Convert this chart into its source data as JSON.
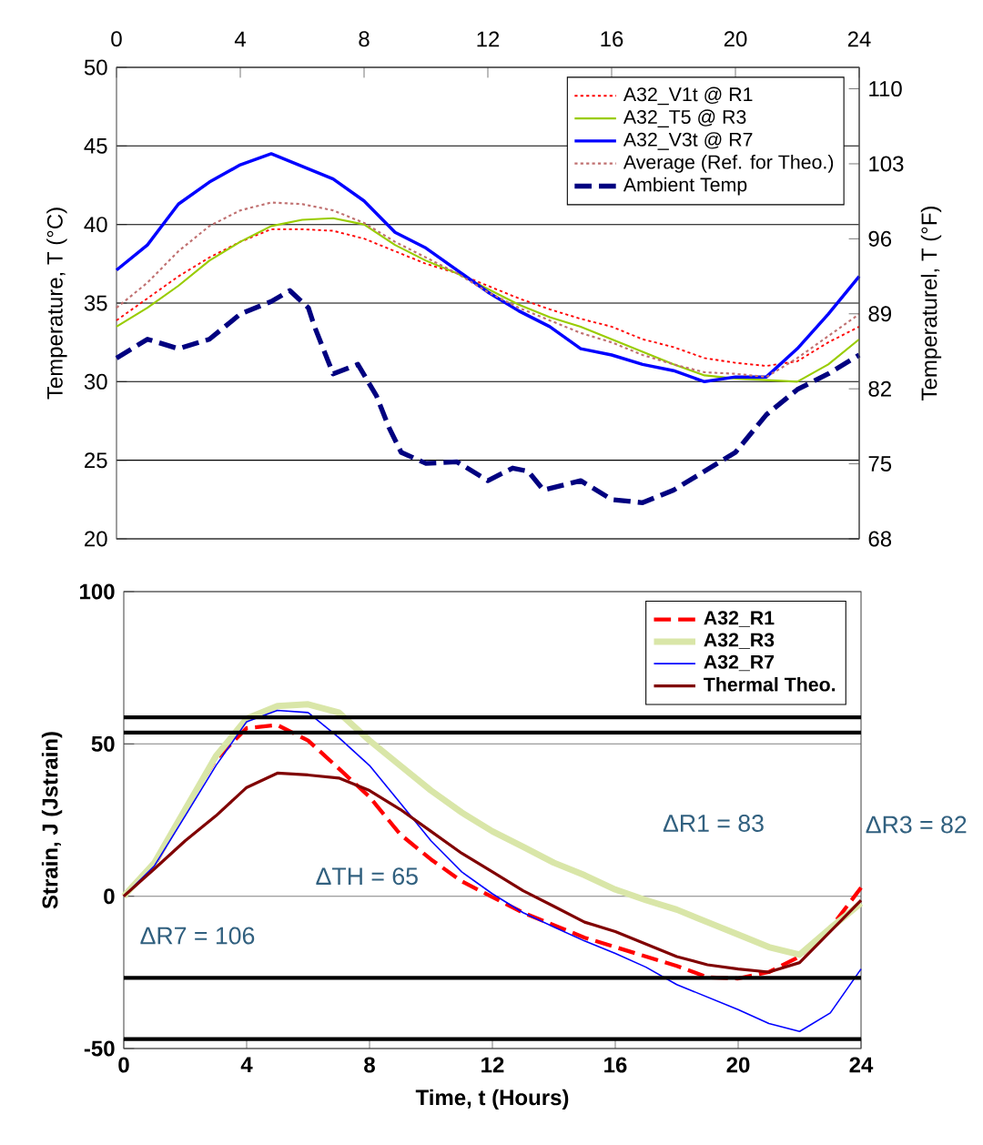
{
  "chart_data": [
    {
      "type": "line",
      "ylabel": "Temperature, T (°C)",
      "y2label": "Temperaturel, T (°F)",
      "x": [
        0,
        1,
        2,
        3,
        4,
        5,
        6,
        7,
        8,
        9,
        10,
        11,
        12,
        13,
        14,
        15,
        16,
        17,
        18,
        19,
        20,
        21,
        22,
        23,
        24
      ],
      "xlim": [
        0,
        24
      ],
      "x2lim": [
        0,
        24
      ],
      "x2ticks": [
        0,
        4,
        8,
        12,
        16,
        20,
        24
      ],
      "ylim": [
        20,
        50
      ],
      "yticks": [
        20,
        25,
        30,
        35,
        40,
        45,
        50
      ],
      "y2lim": [
        68,
        112
      ],
      "y2ticks": [
        68,
        75,
        82,
        89,
        96,
        103,
        110
      ],
      "grid": "y",
      "legend": "top right",
      "series": [
        {
          "name": "A32_V1t @ R1",
          "color": "#ff0000",
          "line_style": "dotted",
          "values": [
            33.9,
            35.3,
            36.7,
            37.9,
            38.9,
            39.7,
            39.7,
            39.6,
            39.1,
            38.3,
            37.5,
            36.9,
            36.1,
            35.3,
            34.6,
            34.0,
            33.5,
            32.7,
            32.2,
            31.5,
            31.2,
            31.0,
            31.3,
            32.5,
            33.5
          ]
        },
        {
          "name": "A32_T5 @ R3",
          "color": "#99cc00",
          "line_style": "solid",
          "values": [
            33.5,
            34.7,
            36.1,
            37.7,
            38.9,
            39.9,
            40.3,
            40.4,
            40.0,
            38.7,
            37.7,
            36.9,
            35.9,
            34.9,
            34.1,
            33.5,
            32.7,
            31.9,
            31.1,
            30.4,
            30.2,
            30.1,
            30.0,
            31.1,
            32.7
          ]
        },
        {
          "name": "A32_V3t @ R7",
          "color": "#0000ff",
          "line_style": "solid",
          "values": [
            37.1,
            38.7,
            41.3,
            42.7,
            43.8,
            44.5,
            43.7,
            42.9,
            41.5,
            39.5,
            38.5,
            37.1,
            35.7,
            34.5,
            33.5,
            32.1,
            31.7,
            31.1,
            30.7,
            30.0,
            30.3,
            30.3,
            32.1,
            34.3,
            36.7
          ]
        },
        {
          "name": "Average (Ref. for Theo.)",
          "color": "#c07070",
          "line_style": "dotted",
          "values": [
            34.7,
            36.3,
            38.3,
            39.9,
            40.9,
            41.4,
            41.3,
            40.9,
            40.1,
            38.9,
            37.9,
            36.9,
            35.7,
            34.7,
            33.9,
            33.1,
            32.5,
            31.7,
            31.1,
            30.6,
            30.5,
            30.3,
            31.5,
            32.9,
            34.3
          ]
        },
        {
          "name": "Ambient Temp",
          "color": "#000080",
          "line_style": "dashed",
          "x": [
            0,
            1,
            2,
            3,
            4,
            5,
            5.6,
            6.2,
            6.4,
            7,
            7.8,
            8.4,
            8.8,
            9.2,
            10,
            11,
            12,
            12.8,
            13.3,
            13.8,
            15,
            16,
            17,
            18,
            19,
            20,
            21,
            22,
            23,
            24
          ],
          "values": [
            31.5,
            32.7,
            32.1,
            32.7,
            34.3,
            35.1,
            35.8,
            34.7,
            33.5,
            30.5,
            31.1,
            29.1,
            27.1,
            25.5,
            24.8,
            24.9,
            23.7,
            24.5,
            24.3,
            23.1,
            23.7,
            22.5,
            22.3,
            23.1,
            24.3,
            25.5,
            27.9,
            29.5,
            30.5,
            31.7
          ]
        }
      ]
    },
    {
      "type": "line",
      "xlabel": "Time, t (Hours)",
      "ylabel": "Strain, J (Jstrain)",
      "x": [
        0,
        1,
        2,
        3,
        4,
        5,
        6,
        7,
        8,
        9,
        10,
        11,
        12,
        13,
        14,
        15,
        16,
        17,
        18,
        19,
        20,
        21,
        22,
        23,
        24
      ],
      "xlim": [
        0,
        24
      ],
      "xticks": [
        0,
        4,
        8,
        12,
        16,
        20,
        24
      ],
      "ylim": [
        -50,
        100
      ],
      "yticks": [
        -50,
        0,
        50,
        100
      ],
      "grid": "y",
      "legend": "top right",
      "series": [
        {
          "name": "A32_R1",
          "color": "#ff0000",
          "line_style": "dashed",
          "values": [
            0,
            10,
            28.5,
            45,
            55.2,
            56.2,
            51.1,
            41.9,
            32.6,
            20.3,
            12.1,
            4.9,
            -0.3,
            -5.4,
            -9.5,
            -13.6,
            -16.7,
            -19.8,
            -22.9,
            -26.6,
            -27.0,
            -24.9,
            -19.8,
            -10.5,
            2.8
          ]
        },
        {
          "name": "A32_R3",
          "color": "#d9e6a8",
          "line_style": "solid",
          "values": [
            0,
            11,
            28.5,
            46,
            58.3,
            62.4,
            63,
            60.3,
            51.1,
            42.9,
            34.7,
            27.5,
            21.3,
            16.2,
            11,
            6.9,
            2.2,
            -1.3,
            -4.4,
            -8.5,
            -12.6,
            -16.7,
            -19.2,
            -10.5,
            -2.3
          ]
        },
        {
          "name": "A32_R7",
          "color": "#0000ff",
          "line_style": "solid",
          "values": [
            0,
            10,
            26.4,
            42.9,
            57.3,
            61,
            60.3,
            52.1,
            42.9,
            30.6,
            18.2,
            8.0,
            0.8,
            -5.4,
            -10.1,
            -14.7,
            -18.8,
            -23.3,
            -29,
            -33.1,
            -37.2,
            -41.8,
            -44.4,
            -38.3,
            -23.9
          ]
        },
        {
          "name": "Thermal Theo.",
          "color": "#800000",
          "line_style": "solid",
          "values": [
            0,
            9,
            18.2,
            26.4,
            35.7,
            40.4,
            39.8,
            38.8,
            34.7,
            28.5,
            21.3,
            14.1,
            8,
            1.8,
            -3.3,
            -8.5,
            -11.6,
            -15.7,
            -19.8,
            -22.5,
            -23.9,
            -24.9,
            -21.8,
            -11.6,
            -1.3
          ]
        }
      ],
      "ref_lines": [
        {
          "axis": "y",
          "value": 58.7,
          "color": "#000000"
        },
        {
          "axis": "y",
          "value": 53.7,
          "color": "#000000"
        },
        {
          "axis": "y",
          "value": -26.8,
          "color": "#000000"
        },
        {
          "axis": "y",
          "value": -46.9,
          "color": "#000000"
        }
      ],
      "annotations": [
        "ΔR7 = 106",
        "ΔTH = 65",
        "ΔR1 = 83",
        "ΔR3 = 82"
      ]
    }
  ]
}
